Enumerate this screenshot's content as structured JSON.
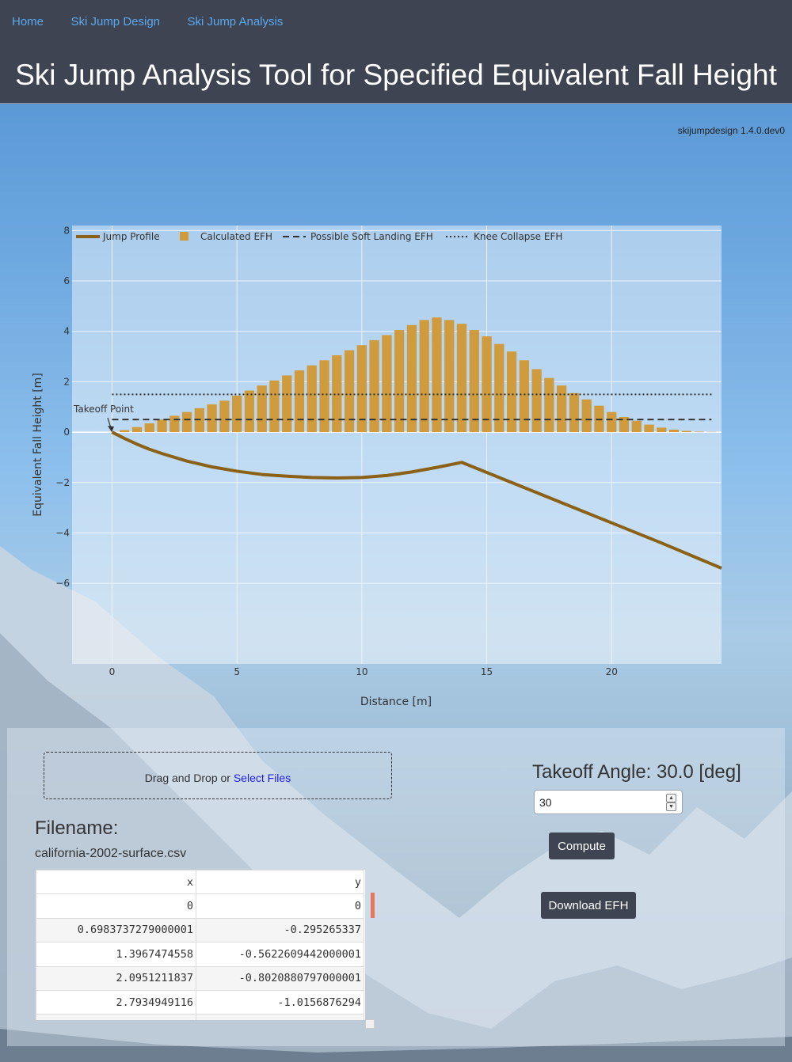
{
  "nav": {
    "items": [
      {
        "label": "Home"
      },
      {
        "label": "Ski Jump Design"
      },
      {
        "label": "Ski Jump Analysis"
      }
    ]
  },
  "page_title": "Ski Jump Analysis Tool for Specified Equivalent Fall Height",
  "version": "skijumpdesign 1.4.0.dev0",
  "chart_data": {
    "type": "bar",
    "title": "",
    "xlabel": "Distance [m]",
    "ylabel": "Equivalent Fall Height [m]",
    "xlim": [
      -1.6,
      24.4
    ],
    "ylim": [
      -9.2,
      8.2
    ],
    "x_ticks": [
      0,
      5,
      10,
      15,
      20
    ],
    "y_ticks": [
      -6,
      -4,
      -2,
      0,
      2,
      4,
      6,
      8
    ],
    "grid": true,
    "legend": "top-left, horizontal",
    "colors": {
      "profile": "#8a6116",
      "efh": "#d09b3c",
      "soft": "#333333",
      "knee": "#333333"
    },
    "series": [
      {
        "name": "Jump Profile",
        "type": "line",
        "x": [
          0,
          0.5,
          1,
          1.5,
          2,
          3,
          4,
          5,
          6,
          7,
          8,
          9,
          10,
          11,
          12,
          13,
          14,
          16,
          18,
          20,
          22,
          24.4
        ],
        "y": [
          0,
          -0.25,
          -0.48,
          -0.68,
          -0.85,
          -1.15,
          -1.38,
          -1.55,
          -1.68,
          -1.75,
          -1.8,
          -1.82,
          -1.8,
          -1.72,
          -1.58,
          -1.4,
          -1.2,
          -2.0,
          -2.8,
          -3.6,
          -4.4,
          -5.4
        ]
      },
      {
        "name": "Calculated EFH",
        "type": "bar",
        "x": [
          0.5,
          1,
          1.5,
          2,
          2.5,
          3,
          3.5,
          4,
          4.5,
          5,
          5.5,
          6,
          6.5,
          7,
          7.5,
          8,
          8.5,
          9,
          9.5,
          10,
          10.5,
          11,
          11.5,
          12,
          12.5,
          13,
          13.5,
          14,
          14.5,
          15,
          15.5,
          16,
          16.5,
          17,
          17.5,
          18,
          18.5,
          19,
          19.5,
          20,
          20.5,
          21,
          21.5,
          22,
          22.5,
          23,
          23.5,
          24
        ],
        "y": [
          0.08,
          0.2,
          0.35,
          0.5,
          0.65,
          0.8,
          0.95,
          1.1,
          1.25,
          1.45,
          1.65,
          1.85,
          2.05,
          2.25,
          2.45,
          2.65,
          2.85,
          3.05,
          3.25,
          3.45,
          3.65,
          3.85,
          4.05,
          4.25,
          4.45,
          4.55,
          4.45,
          4.3,
          4.05,
          3.8,
          3.5,
          3.2,
          2.85,
          2.5,
          2.15,
          1.85,
          1.55,
          1.3,
          1.05,
          0.8,
          0.6,
          0.45,
          0.3,
          0.18,
          0.1,
          0.05,
          0.02,
          0.01
        ]
      },
      {
        "name": "Possible Soft Landing EFH",
        "type": "line",
        "x": [
          0,
          24
        ],
        "y": [
          0.5,
          0.5
        ]
      },
      {
        "name": "Knee Collapse EFH",
        "type": "line",
        "x": [
          0,
          24
        ],
        "y": [
          1.5,
          1.5
        ]
      }
    ],
    "annotations": [
      {
        "text": "Takeoff Point",
        "x": 0,
        "y": 0
      }
    ]
  },
  "upload": {
    "text": "Drag and Drop or ",
    "link_text": "Select Files"
  },
  "file": {
    "label": "Filename:",
    "name": "california-2002-surface.csv"
  },
  "table": {
    "columns": [
      "x",
      "y"
    ],
    "rows": [
      [
        "0",
        "0"
      ],
      [
        "0.6983737279000001",
        "-0.295265337"
      ],
      [
        "1.3967474558",
        "-0.5622609442000001"
      ],
      [
        "2.0951211837",
        "-0.8020880797000001"
      ],
      [
        "2.7934949116",
        "-1.0156876294"
      ],
      [
        "",
        ""
      ]
    ]
  },
  "controls": {
    "angle_label": "Takeoff Angle: 30.0 [deg]",
    "angle_value": "30",
    "compute_label": "Compute",
    "download_label": "Download EFH"
  }
}
